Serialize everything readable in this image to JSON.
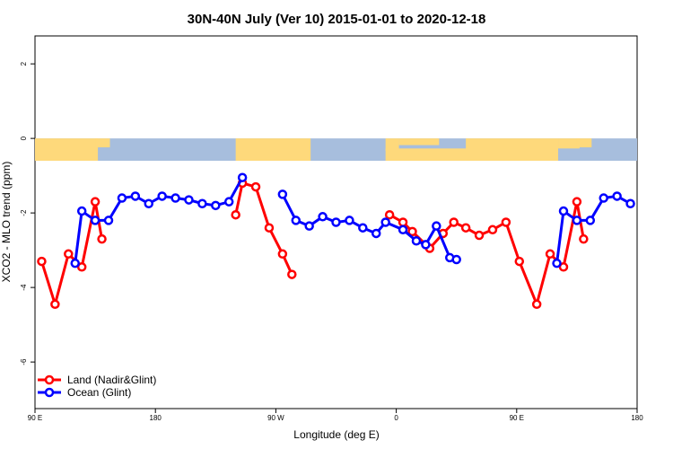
{
  "chart_data": {
    "type": "line",
    "title": "30N-40N July (Ver 10)   2015-01-01 to 2020-12-18",
    "xlabel": "Longitude (deg E)",
    "ylabel": "XCO2 - MLO trend (ppm)",
    "xlim": [
      90,
      540
    ],
    "ylim": [
      -7.25,
      2.75
    ],
    "x_ticks": [
      {
        "value": 90,
        "label": "90 E"
      },
      {
        "value": 180,
        "label": "180"
      },
      {
        "value": 270,
        "label": "90 W"
      },
      {
        "value": 360,
        "label": "0"
      },
      {
        "value": 450,
        "label": "90 E"
      },
      {
        "value": 540,
        "label": "180"
      }
    ],
    "y_ticks": [
      {
        "value": 2,
        "label": "2"
      },
      {
        "value": 0,
        "label": "0"
      },
      {
        "value": -2,
        "label": "-2"
      },
      {
        "value": -4,
        "label": "-4"
      },
      {
        "value": -6,
        "label": "-6"
      }
    ],
    "map_band": {
      "ymin": -0.6,
      "ymax": 0,
      "ocean_color": "#a7bedd",
      "land_color": "#fed97b"
    },
    "series": [
      {
        "name": "Land (Nadir&Glint)",
        "color": "#ff0000",
        "segments": [
          [
            [
              95,
              -3.3
            ],
            [
              105,
              -4.45
            ],
            [
              115,
              -3.1
            ],
            [
              125,
              -3.45
            ],
            [
              135,
              -1.7
            ],
            [
              140,
              -2.7
            ]
          ],
          [
            [
              240,
              -2.05
            ],
            [
              245,
              -1.2
            ],
            [
              255,
              -1.3
            ],
            [
              265,
              -2.4
            ],
            [
              275,
              -3.1
            ],
            [
              282,
              -3.65
            ]
          ],
          [
            [
              355,
              -2.05
            ],
            [
              365,
              -2.25
            ],
            [
              372,
              -2.5
            ],
            [
              385,
              -2.95
            ],
            [
              395,
              -2.55
            ],
            [
              403,
              -2.25
            ],
            [
              412,
              -2.4
            ],
            [
              422,
              -2.6
            ],
            [
              432,
              -2.45
            ],
            [
              442,
              -2.25
            ],
            [
              452,
              -3.3
            ],
            [
              465,
              -4.45
            ],
            [
              475,
              -3.1
            ],
            [
              485,
              -3.45
            ],
            [
              495,
              -1.7
            ],
            [
              500,
              -2.7
            ]
          ]
        ]
      },
      {
        "name": "Ocean (Glint)",
        "color": "#0000ff",
        "segments": [
          [
            [
              120,
              -3.35
            ],
            [
              125,
              -1.95
            ],
            [
              135,
              -2.2
            ],
            [
              145,
              -2.2
            ],
            [
              155,
              -1.6
            ],
            [
              165,
              -1.55
            ],
            [
              175,
              -1.75
            ],
            [
              185,
              -1.55
            ],
            [
              195,
              -1.6
            ],
            [
              205,
              -1.65
            ],
            [
              215,
              -1.75
            ],
            [
              225,
              -1.8
            ],
            [
              235,
              -1.7
            ],
            [
              245,
              -1.05
            ]
          ],
          [
            [
              275,
              -1.5
            ],
            [
              285,
              -2.2
            ],
            [
              295,
              -2.35
            ],
            [
              305,
              -2.1
            ],
            [
              315,
              -2.25
            ],
            [
              325,
              -2.2
            ],
            [
              335,
              -2.4
            ],
            [
              345,
              -2.55
            ],
            [
              352,
              -2.25
            ],
            [
              365,
              -2.45
            ],
            [
              375,
              -2.75
            ],
            [
              382,
              -2.85
            ],
            [
              390,
              -2.35
            ],
            [
              400,
              -3.2
            ],
            [
              405,
              -3.25
            ]
          ],
          [
            [
              480,
              -3.35
            ],
            [
              485,
              -1.95
            ],
            [
              495,
              -2.2
            ],
            [
              505,
              -2.2
            ],
            [
              515,
              -1.6
            ],
            [
              525,
              -1.55
            ],
            [
              535,
              -1.75
            ]
          ]
        ]
      }
    ],
    "legend_position": "bottom-left"
  }
}
